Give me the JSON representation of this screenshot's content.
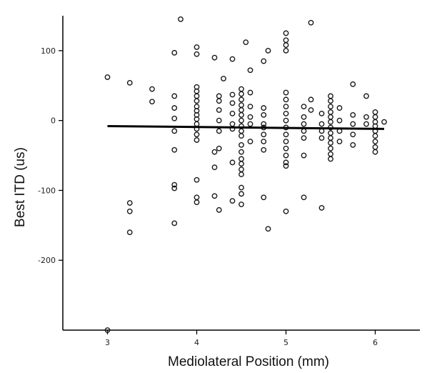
{
  "chart_data": {
    "type": "scatter",
    "title": "",
    "xlabel": "Mediolateral Position (mm)",
    "ylabel": "Best ITD (us)",
    "xlim": [
      2.5,
      6.5
    ],
    "ylim": [
      -300,
      150
    ],
    "xticks": [
      3,
      4,
      5,
      6
    ],
    "yticks": [
      -200,
      -100,
      0,
      100
    ],
    "x_tick_labels": [
      "3",
      "4",
      "5",
      "6"
    ],
    "y_tick_labels": [
      "-200",
      "-100",
      "0",
      "100"
    ],
    "grid": false,
    "series": [
      {
        "points": [
          [
            3.0,
            62
          ],
          [
            3.0,
            -300
          ],
          [
            3.25,
            54
          ],
          [
            3.25,
            -118
          ],
          [
            3.25,
            -130
          ],
          [
            3.25,
            -160
          ],
          [
            3.5,
            45
          ],
          [
            3.5,
            27
          ],
          [
            3.75,
            97
          ],
          [
            3.75,
            35
          ],
          [
            3.75,
            18
          ],
          [
            3.75,
            3
          ],
          [
            3.75,
            -15
          ],
          [
            3.75,
            -42
          ],
          [
            3.75,
            -92
          ],
          [
            3.75,
            -97
          ],
          [
            3.75,
            -147
          ],
          [
            3.82,
            145
          ],
          [
            4.0,
            105
          ],
          [
            4.0,
            95
          ],
          [
            4.0,
            48
          ],
          [
            4.0,
            42
          ],
          [
            4.0,
            35
          ],
          [
            4.0,
            28
          ],
          [
            4.0,
            20
          ],
          [
            4.0,
            14
          ],
          [
            4.0,
            8
          ],
          [
            4.0,
            2
          ],
          [
            4.0,
            -5
          ],
          [
            4.0,
            -12
          ],
          [
            4.0,
            -20
          ],
          [
            4.0,
            -28
          ],
          [
            4.0,
            -85
          ],
          [
            4.0,
            -110
          ],
          [
            4.0,
            -117
          ],
          [
            4.2,
            90
          ],
          [
            4.2,
            -45
          ],
          [
            4.2,
            -67
          ],
          [
            4.2,
            -108
          ],
          [
            4.25,
            35
          ],
          [
            4.25,
            28
          ],
          [
            4.25,
            15
          ],
          [
            4.25,
            0
          ],
          [
            4.25,
            -15
          ],
          [
            4.25,
            -40
          ],
          [
            4.25,
            -128
          ],
          [
            4.3,
            60
          ],
          [
            4.4,
            88
          ],
          [
            4.4,
            37
          ],
          [
            4.4,
            25
          ],
          [
            4.4,
            10
          ],
          [
            4.4,
            -5
          ],
          [
            4.4,
            -12
          ],
          [
            4.4,
            -60
          ],
          [
            4.4,
            -115
          ],
          [
            4.5,
            45
          ],
          [
            4.5,
            38
          ],
          [
            4.5,
            30
          ],
          [
            4.5,
            22
          ],
          [
            4.5,
            15
          ],
          [
            4.5,
            8
          ],
          [
            4.5,
            0
          ],
          [
            4.5,
            -8
          ],
          [
            4.5,
            -15
          ],
          [
            4.5,
            -22
          ],
          [
            4.5,
            -35
          ],
          [
            4.5,
            -45
          ],
          [
            4.5,
            -55
          ],
          [
            4.5,
            -62
          ],
          [
            4.5,
            -70
          ],
          [
            4.5,
            -77
          ],
          [
            4.5,
            -96
          ],
          [
            4.5,
            -105
          ],
          [
            4.5,
            -120
          ],
          [
            4.55,
            112
          ],
          [
            4.6,
            72
          ],
          [
            4.6,
            40
          ],
          [
            4.6,
            20
          ],
          [
            4.6,
            5
          ],
          [
            4.6,
            -5
          ],
          [
            4.6,
            -30
          ],
          [
            4.75,
            85
          ],
          [
            4.75,
            18
          ],
          [
            4.75,
            8
          ],
          [
            4.75,
            -5
          ],
          [
            4.75,
            -10
          ],
          [
            4.75,
            -20
          ],
          [
            4.75,
            -30
          ],
          [
            4.75,
            -42
          ],
          [
            4.75,
            -110
          ],
          [
            4.8,
            100
          ],
          [
            4.8,
            -155
          ],
          [
            5.0,
            125
          ],
          [
            5.0,
            115
          ],
          [
            5.0,
            108
          ],
          [
            5.0,
            100
          ],
          [
            5.0,
            40
          ],
          [
            5.0,
            30
          ],
          [
            5.0,
            20
          ],
          [
            5.0,
            10
          ],
          [
            5.0,
            0
          ],
          [
            5.0,
            -10
          ],
          [
            5.0,
            -20
          ],
          [
            5.0,
            -30
          ],
          [
            5.0,
            -40
          ],
          [
            5.0,
            -50
          ],
          [
            5.0,
            -60
          ],
          [
            5.0,
            -65
          ],
          [
            5.0,
            -130
          ],
          [
            5.2,
            20
          ],
          [
            5.2,
            5
          ],
          [
            5.2,
            -5
          ],
          [
            5.2,
            -15
          ],
          [
            5.2,
            -25
          ],
          [
            5.2,
            -50
          ],
          [
            5.2,
            -110
          ],
          [
            5.28,
            140
          ],
          [
            5.28,
            30
          ],
          [
            5.28,
            15
          ],
          [
            5.4,
            10
          ],
          [
            5.4,
            -5
          ],
          [
            5.4,
            -15
          ],
          [
            5.4,
            -25
          ],
          [
            5.4,
            -125
          ],
          [
            5.5,
            35
          ],
          [
            5.5,
            28
          ],
          [
            5.5,
            20
          ],
          [
            5.5,
            12
          ],
          [
            5.5,
            5
          ],
          [
            5.5,
            -2
          ],
          [
            5.5,
            -10
          ],
          [
            5.5,
            -18
          ],
          [
            5.5,
            -25
          ],
          [
            5.5,
            -32
          ],
          [
            5.5,
            -40
          ],
          [
            5.5,
            -48
          ],
          [
            5.5,
            -55
          ],
          [
            5.6,
            18
          ],
          [
            5.6,
            0
          ],
          [
            5.6,
            -15
          ],
          [
            5.6,
            -30
          ],
          [
            5.75,
            52
          ],
          [
            5.75,
            8
          ],
          [
            5.75,
            -5
          ],
          [
            5.75,
            -20
          ],
          [
            5.75,
            -35
          ],
          [
            5.9,
            35
          ],
          [
            5.9,
            5
          ],
          [
            5.9,
            -5
          ],
          [
            6.0,
            12
          ],
          [
            6.0,
            5
          ],
          [
            6.0,
            -2
          ],
          [
            6.0,
            -8
          ],
          [
            6.0,
            -15
          ],
          [
            6.0,
            -22
          ],
          [
            6.0,
            -30
          ],
          [
            6.0,
            -38
          ],
          [
            6.0,
            -45
          ],
          [
            6.1,
            -2
          ]
        ]
      }
    ],
    "regression_line": {
      "x": [
        3.0,
        6.1
      ],
      "y": [
        -8,
        -12
      ]
    }
  }
}
